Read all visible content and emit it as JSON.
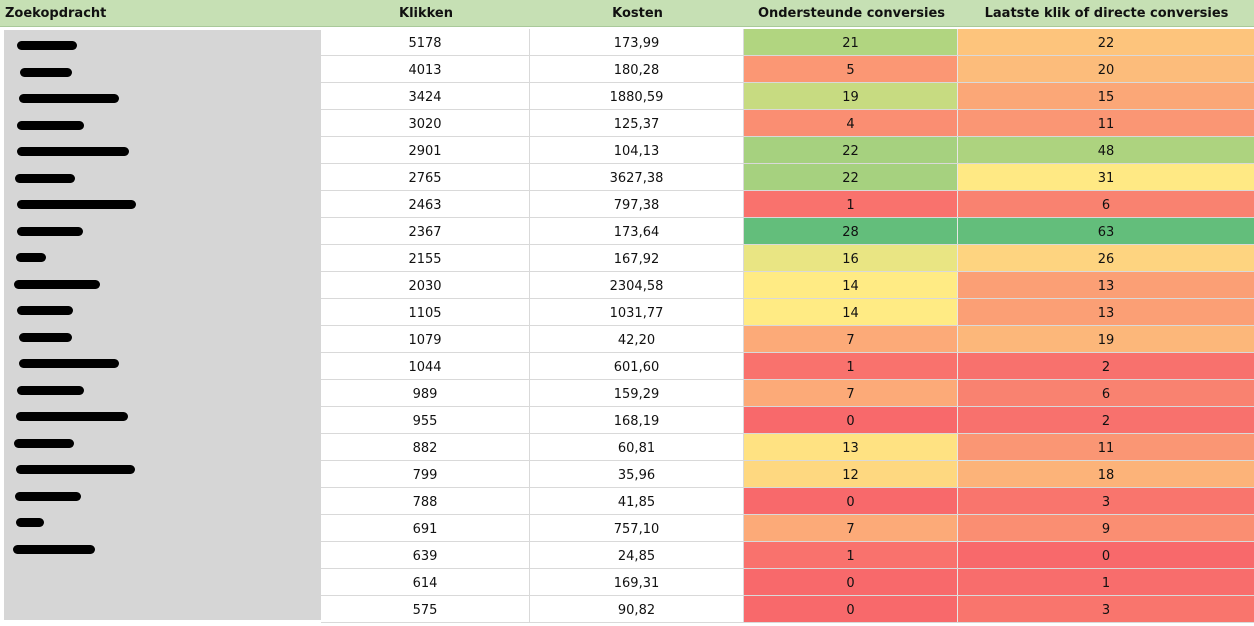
{
  "table": {
    "headers": {
      "query": "Zoekopdracht",
      "clicks": "Klikken",
      "cost": "Kosten",
      "assist": "Ondersteunde conversies",
      "last": "Laatste klik of directe conversies"
    },
    "rows": [
      {
        "clicks": "5178",
        "cost": "173,99",
        "assist": "21",
        "last": "22"
      },
      {
        "clicks": "4013",
        "cost": "180,28",
        "assist": "5",
        "last": "20"
      },
      {
        "clicks": "3424",
        "cost": "1880,59",
        "assist": "19",
        "last": "15"
      },
      {
        "clicks": "3020",
        "cost": "125,37",
        "assist": "4",
        "last": "11"
      },
      {
        "clicks": "2901",
        "cost": "104,13",
        "assist": "22",
        "last": "48"
      },
      {
        "clicks": "2765",
        "cost": "3627,38",
        "assist": "22",
        "last": "31"
      },
      {
        "clicks": "2463",
        "cost": "797,38",
        "assist": "1",
        "last": "6"
      },
      {
        "clicks": "2367",
        "cost": "173,64",
        "assist": "28",
        "last": "63"
      },
      {
        "clicks": "2155",
        "cost": "167,92",
        "assist": "16",
        "last": "26"
      },
      {
        "clicks": "2030",
        "cost": "2304,58",
        "assist": "14",
        "last": "13"
      },
      {
        "clicks": "1105",
        "cost": "1031,77",
        "assist": "14",
        "last": "13"
      },
      {
        "clicks": "1079",
        "cost": "42,20",
        "assist": "7",
        "last": "19"
      },
      {
        "clicks": "1044",
        "cost": "601,60",
        "assist": "1",
        "last": "2"
      },
      {
        "clicks": "989",
        "cost": "159,29",
        "assist": "7",
        "last": "6"
      },
      {
        "clicks": "955",
        "cost": "168,19",
        "assist": "0",
        "last": "2"
      },
      {
        "clicks": "882",
        "cost": "60,81",
        "assist": "13",
        "last": "11"
      },
      {
        "clicks": "799",
        "cost": "35,96",
        "assist": "12",
        "last": "18"
      },
      {
        "clicks": "788",
        "cost": "41,85",
        "assist": "0",
        "last": "3"
      },
      {
        "clicks": "691",
        "cost": "757,10",
        "assist": "7",
        "last": "9"
      },
      {
        "clicks": "639",
        "cost": "24,85",
        "assist": "1",
        "last": "0"
      },
      {
        "clicks": "614",
        "cost": "169,31",
        "assist": "0",
        "last": "1"
      },
      {
        "clicks": "575",
        "cost": "90,82",
        "assist": "0",
        "last": "3"
      }
    ]
  },
  "colors": {
    "header_bg": "#c6e0b4",
    "scale_low": "#f8696b",
    "scale_mid": "#ffeb84",
    "scale_high": "#63be7b",
    "redaction_panel": "#d6d6d6"
  }
}
